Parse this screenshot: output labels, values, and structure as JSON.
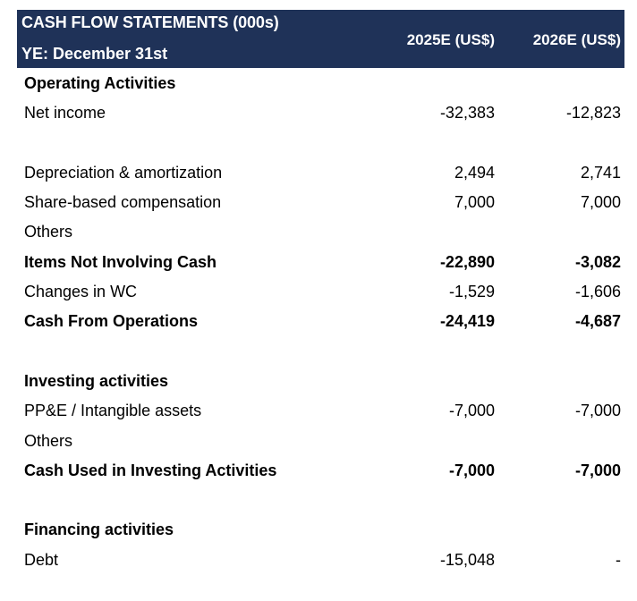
{
  "header": {
    "title": "CASH FLOW STATEMENTS (000s)",
    "subtitle": "YE: December 31st",
    "col1": "2025E (US$)",
    "col2": "2026E (US$)"
  },
  "rows": [
    {
      "label": "Operating Activities",
      "v1": "",
      "v2": "",
      "bold": true
    },
    {
      "label": "Net income",
      "v1": "-32,383",
      "v2": "-12,823",
      "bold": false
    },
    {
      "label": "",
      "v1": "",
      "v2": "",
      "bold": false
    },
    {
      "label": "Depreciation & amortization",
      "v1": "2,494",
      "v2": "2,741",
      "bold": false
    },
    {
      "label": "Share-based compensation",
      "v1": "7,000",
      "v2": "7,000",
      "bold": false
    },
    {
      "label": "Others",
      "v1": "",
      "v2": "",
      "bold": false
    },
    {
      "label": "Items Not Involving Cash",
      "v1": "-22,890",
      "v2": "-3,082",
      "bold": true
    },
    {
      "label": "Changes in WC",
      "v1": "-1,529",
      "v2": "-1,606",
      "bold": false
    },
    {
      "label": "Cash From Operations",
      "v1": "-24,419",
      "v2": "-4,687",
      "bold": true
    },
    {
      "label": "",
      "v1": "",
      "v2": "",
      "bold": false
    },
    {
      "label": "Investing activities",
      "v1": "",
      "v2": "",
      "bold": true
    },
    {
      "label": "PP&E / Intangible assets",
      "v1": "-7,000",
      "v2": "-7,000",
      "bold": false
    },
    {
      "label": "Others",
      "v1": "",
      "v2": "",
      "bold": false
    },
    {
      "label": "Cash Used in Investing Activities",
      "v1": "-7,000",
      "v2": "-7,000",
      "bold": true
    },
    {
      "label": "",
      "v1": "",
      "v2": "",
      "bold": false
    },
    {
      "label": "Financing activities",
      "v1": "",
      "v2": "",
      "bold": true
    },
    {
      "label": "Debt",
      "v1": "-15,048",
      "v2": "-",
      "bold": false
    }
  ],
  "colors": {
    "header_bg": "#1f3258",
    "header_text": "#ffffff"
  }
}
